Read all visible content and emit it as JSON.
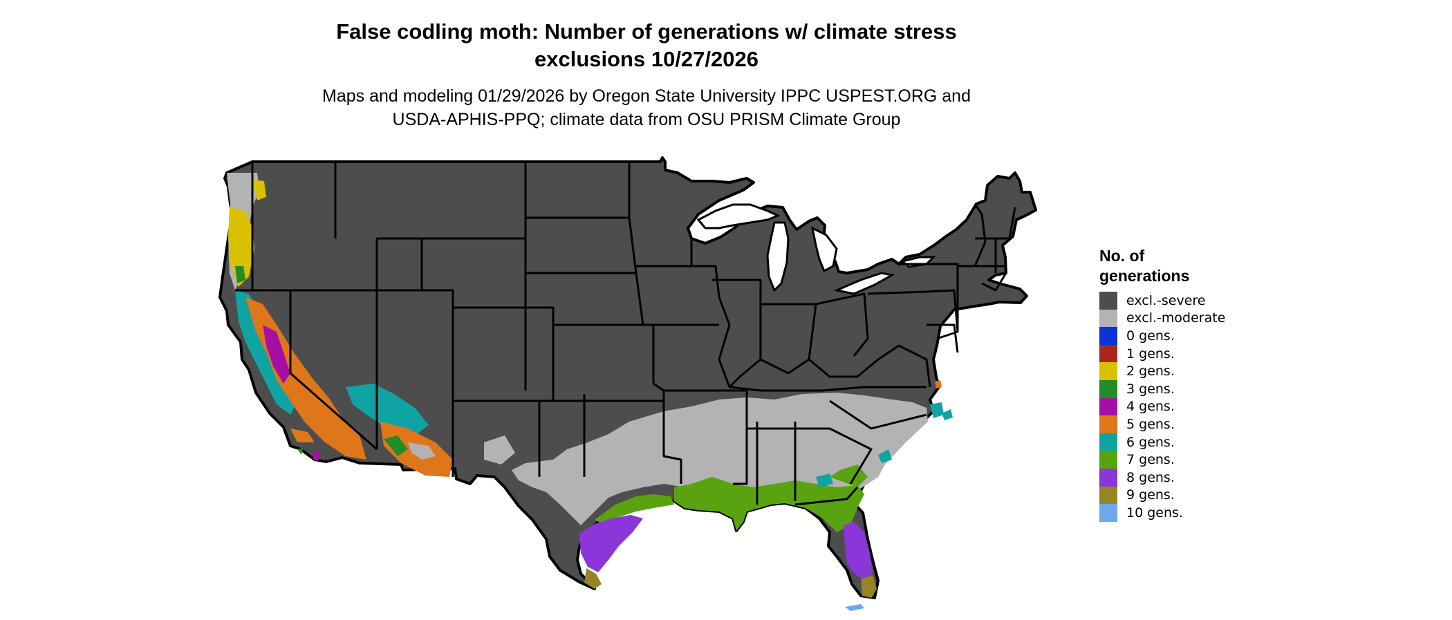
{
  "title_line1": "False codling moth: Number of generations w/ climate stress",
  "title_line2": "exclusions 10/27/2026",
  "subtitle_line1": "Maps and modeling 01/29/2026 by Oregon State University IPPC USPEST.ORG and",
  "subtitle_line2": "USDA-APHIS-PPQ; climate data from OSU PRISM Climate Group",
  "legend": {
    "title_line1": "No. of",
    "title_line2": "generations",
    "items": [
      {
        "label": "excl.-severe",
        "color": "#4d4d4d"
      },
      {
        "label": "excl.-moderate",
        "color": "#b3b3b3"
      },
      {
        "label": "0 gens.",
        "color": "#0a32d6"
      },
      {
        "label": "1 gens.",
        "color": "#a8261a"
      },
      {
        "label": "2 gens.",
        "color": "#d9c100"
      },
      {
        "label": "3 gens.",
        "color": "#248c24"
      },
      {
        "label": "4 gens.",
        "color": "#a50fa5"
      },
      {
        "label": "5 gens.",
        "color": "#e0761a"
      },
      {
        "label": "6 gens.",
        "color": "#0fa3a3"
      },
      {
        "label": "7 gens.",
        "color": "#5aa310"
      },
      {
        "label": "8 gens.",
        "color": "#8a36d9"
      },
      {
        "label": "9 gens.",
        "color": "#968524"
      },
      {
        "label": "10 gens.",
        "color": "#6ea8ec"
      }
    ]
  }
}
